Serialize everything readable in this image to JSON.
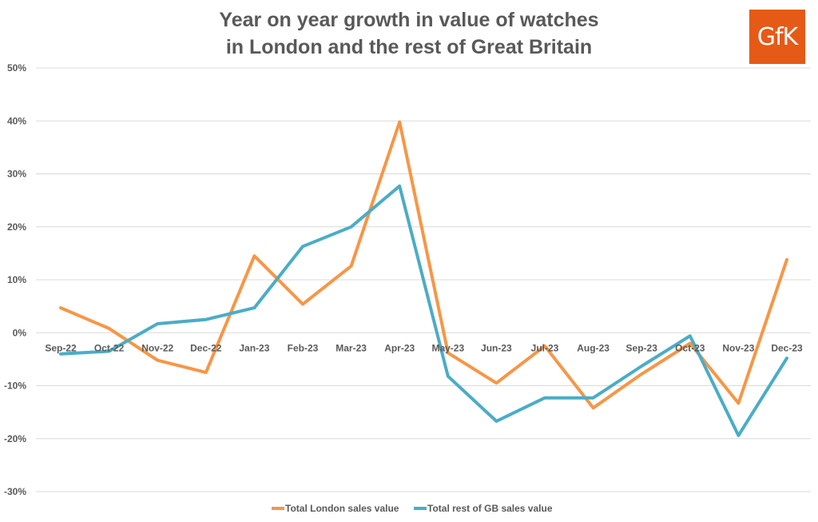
{
  "chart_data": {
    "type": "line",
    "title_lines": [
      "Year on year growth in value of watches",
      "in London and the rest of Great Britain"
    ],
    "logo_text": "GfK",
    "categories": [
      "Sep-22",
      "Oct-22",
      "Nov-22",
      "Dec-22",
      "Jan-23",
      "Feb-23",
      "Mar-23",
      "Apr-23",
      "May-23",
      "Jun-23",
      "Jul-23",
      "Aug-23",
      "Sep-23",
      "Oct-23",
      "Nov-23",
      "Dec-23"
    ],
    "ylim": [
      -30,
      50
    ],
    "yticks": [
      50,
      40,
      30,
      20,
      10,
      0,
      -10,
      -20,
      -30
    ],
    "ytick_labels": [
      "50%",
      "40%",
      "30%",
      "20%",
      "10%",
      "0%",
      "-10%",
      "-20%",
      "-30%"
    ],
    "grid": true,
    "legend_position": "bottom",
    "series": [
      {
        "name": "Total London sales value",
        "color": "#f79646",
        "values": [
          4.7,
          0.8,
          -5.2,
          -7.5,
          14.5,
          5.4,
          12.6,
          39.8,
          -3.8,
          -9.5,
          -2.5,
          -14.2,
          -7.8,
          -2.0,
          -13.3,
          13.8
        ]
      },
      {
        "name": "Total rest of GB sales value",
        "color": "#4bacc6",
        "values": [
          -4.0,
          -3.5,
          1.7,
          2.5,
          4.7,
          16.3,
          20.0,
          27.7,
          -8.2,
          -16.7,
          -12.3,
          -12.3,
          -6.3,
          -0.6,
          -19.4,
          -4.8
        ]
      }
    ]
  }
}
